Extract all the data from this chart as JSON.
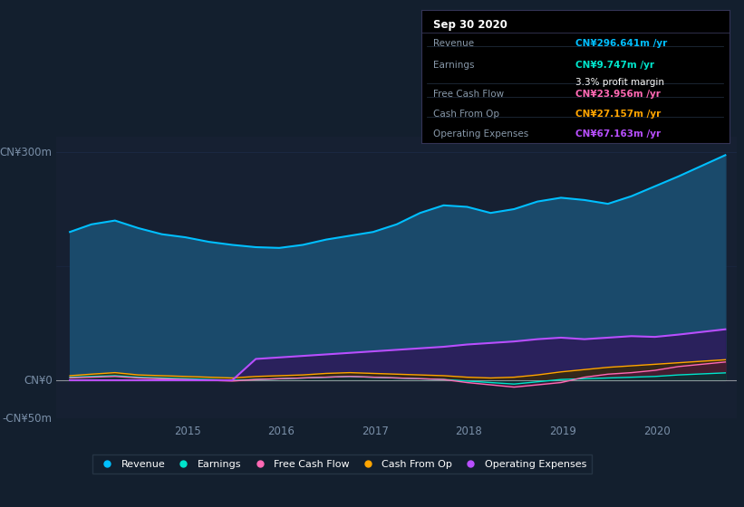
{
  "bg_color": "#131f2e",
  "plot_bg_color": "#162032",
  "upper_bg_color": "#131f2e",
  "title": "Sep 30 2020",
  "ylabel_top": "CN¥300m",
  "ylabel_zero": "CN¥0",
  "ylabel_neg": "-CN¥50m",
  "ylim": [
    -50,
    320
  ],
  "xlim": [
    2013.6,
    2020.85
  ],
  "xticks": [
    2015,
    2016,
    2017,
    2018,
    2019,
    2020
  ],
  "grid_color": "#1e3050",
  "line_colors": {
    "Revenue": "#00bfff",
    "Earnings": "#00e5cc",
    "FreeCashFlow": "#ff69b4",
    "CashFromOp": "#ffa500",
    "OperatingExpenses": "#b84fff"
  },
  "fill_colors": {
    "Revenue": "#1a4a6b",
    "Earnings": "#003333",
    "FreeCashFlow": "#4a1a3a",
    "CashFromOp": "#3a2a00",
    "OperatingExpenses": "#2d1a5a"
  },
  "legend": [
    "Revenue",
    "Earnings",
    "Free Cash Flow",
    "Cash From Op",
    "Operating Expenses"
  ],
  "legend_colors": [
    "#00bfff",
    "#00e5cc",
    "#ff69b4",
    "#ffa500",
    "#b84fff"
  ],
  "revenue_color": "#00bfff",
  "earnings_color": "#00e5cc",
  "fcf_color": "#ff69b4",
  "cashop_color": "#ffa500",
  "opex_color": "#b84fff",
  "tooltip_rows": [
    {
      "label": "Revenue",
      "value": "CN¥296.641m /yr",
      "color": "#00bfff",
      "sub": null
    },
    {
      "label": "Earnings",
      "value": "CN¥9.747m /yr",
      "color": "#00e5cc",
      "sub": "3.3% profit margin"
    },
    {
      "label": "Free Cash Flow",
      "value": "CN¥23.956m /yr",
      "color": "#ff69b4",
      "sub": null
    },
    {
      "label": "Cash From Op",
      "value": "CN¥27.157m /yr",
      "color": "#ffa500",
      "sub": null
    },
    {
      "label": "Operating Expenses",
      "value": "CN¥67.163m /yr",
      "color": "#b84fff",
      "sub": null
    }
  ],
  "revenue": [
    195,
    205,
    210,
    200,
    192,
    188,
    182,
    178,
    175,
    174,
    178,
    185,
    190,
    195,
    205,
    220,
    230,
    228,
    220,
    225,
    235,
    240,
    237,
    232,
    242,
    255,
    268,
    296
  ],
  "earnings": [
    4,
    5,
    6,
    4,
    3,
    2,
    1,
    0,
    1,
    2,
    3,
    4,
    5,
    4,
    3,
    2,
    1,
    -1,
    -3,
    -5,
    -2,
    1,
    2,
    3,
    4,
    5,
    7,
    9.7
  ],
  "fcf": [
    3,
    4,
    5,
    3,
    2,
    1,
    0,
    -1,
    1,
    2,
    3,
    4,
    5,
    4,
    3,
    2,
    1,
    -3,
    -6,
    -9,
    -6,
    -3,
    4,
    8,
    10,
    13,
    18,
    24
  ],
  "cashop": [
    6,
    8,
    10,
    7,
    6,
    5,
    4,
    3,
    5,
    6,
    7,
    9,
    10,
    9,
    8,
    7,
    6,
    4,
    3,
    4,
    7,
    11,
    14,
    17,
    19,
    21,
    23,
    27
  ],
  "opex": [
    0,
    0,
    0,
    0,
    0,
    0,
    0,
    0,
    28,
    30,
    32,
    34,
    36,
    38,
    40,
    42,
    44,
    47,
    49,
    51,
    54,
    56,
    54,
    56,
    58,
    57,
    60,
    67
  ],
  "t": [
    2013.75,
    2013.98,
    2014.23,
    2014.48,
    2014.73,
    2014.98,
    2015.23,
    2015.48,
    2015.73,
    2015.98,
    2016.23,
    2016.48,
    2016.73,
    2016.98,
    2017.23,
    2017.48,
    2017.73,
    2017.98,
    2018.23,
    2018.48,
    2018.73,
    2018.98,
    2019.23,
    2019.48,
    2019.73,
    2019.98,
    2020.23,
    2020.73
  ]
}
